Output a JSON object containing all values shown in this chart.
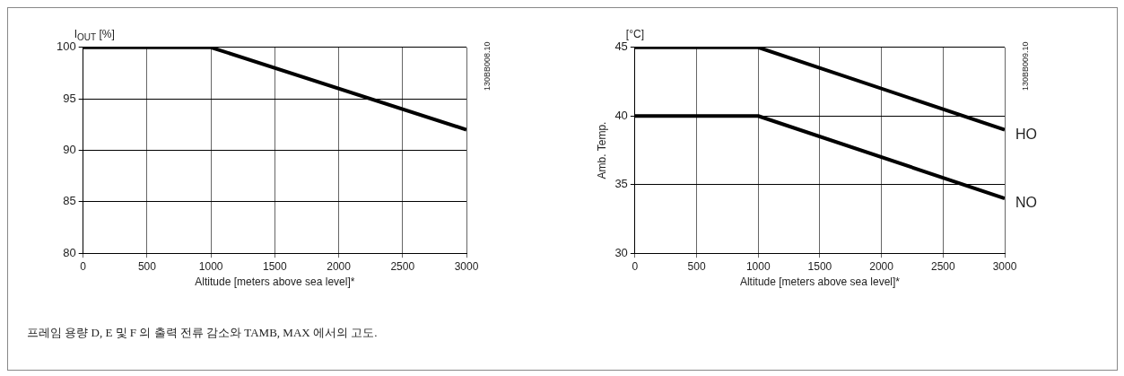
{
  "chart_data": [
    {
      "type": "line",
      "ylabel": "I$_{OUT}$ [%]",
      "xlabel": "Altitude [meters above sea level]*",
      "x": [
        0,
        1000,
        3000
      ],
      "series": [
        {
          "color": "#000000",
          "values": [
            100,
            100,
            92
          ]
        }
      ],
      "xlim": [
        0,
        3000
      ],
      "xticks": [
        0,
        500,
        1000,
        1500,
        2000,
        2500,
        3000
      ],
      "ylim": [
        80,
        100
      ],
      "yticks": [
        80,
        85,
        90,
        95,
        100
      ],
      "grid": true,
      "legend": false,
      "annotations": [
        "130BB008.10",
        "프레임 용량 D, E 및 F 의 출력 전류 감소와 TAMB, MAX 에서의 고도."
      ]
    },
    {
      "type": "line",
      "ylabel": "Amb. Temp.",
      "xlabel": "Altitude [meters above sea level]*",
      "x": [
        0,
        1000,
        3000
      ],
      "series": [
        {
          "name": "HO",
          "color": "#000000",
          "values": [
            45,
            45,
            39
          ]
        },
        {
          "name": "NO",
          "color": "#000000",
          "values": [
            40,
            40,
            34
          ]
        }
      ],
      "xlim": [
        0,
        3000
      ],
      "xticks": [
        0,
        500,
        1000,
        1500,
        2000,
        2500,
        3000
      ],
      "ylim": [
        30,
        45
      ],
      "yticks": [
        30,
        35,
        40,
        45
      ],
      "grid": true,
      "legend": false,
      "annotations": [
        "[°C]",
        "130BB009.10"
      ]
    }
  ]
}
